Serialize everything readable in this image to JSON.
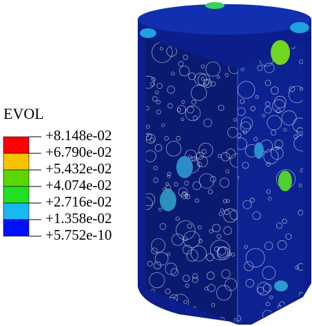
{
  "legend": {
    "title": "EVOL",
    "colors": [
      "#ff0000",
      "#f7c300",
      "#5ad600",
      "#22e022",
      "#18b8f0",
      "#0010ff"
    ],
    "labels": [
      "+8.148e-02",
      "+6.790e-02",
      "+5.432e-02",
      "+4.074e-02",
      "+2.716e-02",
      "+1.358e-02",
      "+5.752e-10"
    ]
  }
}
